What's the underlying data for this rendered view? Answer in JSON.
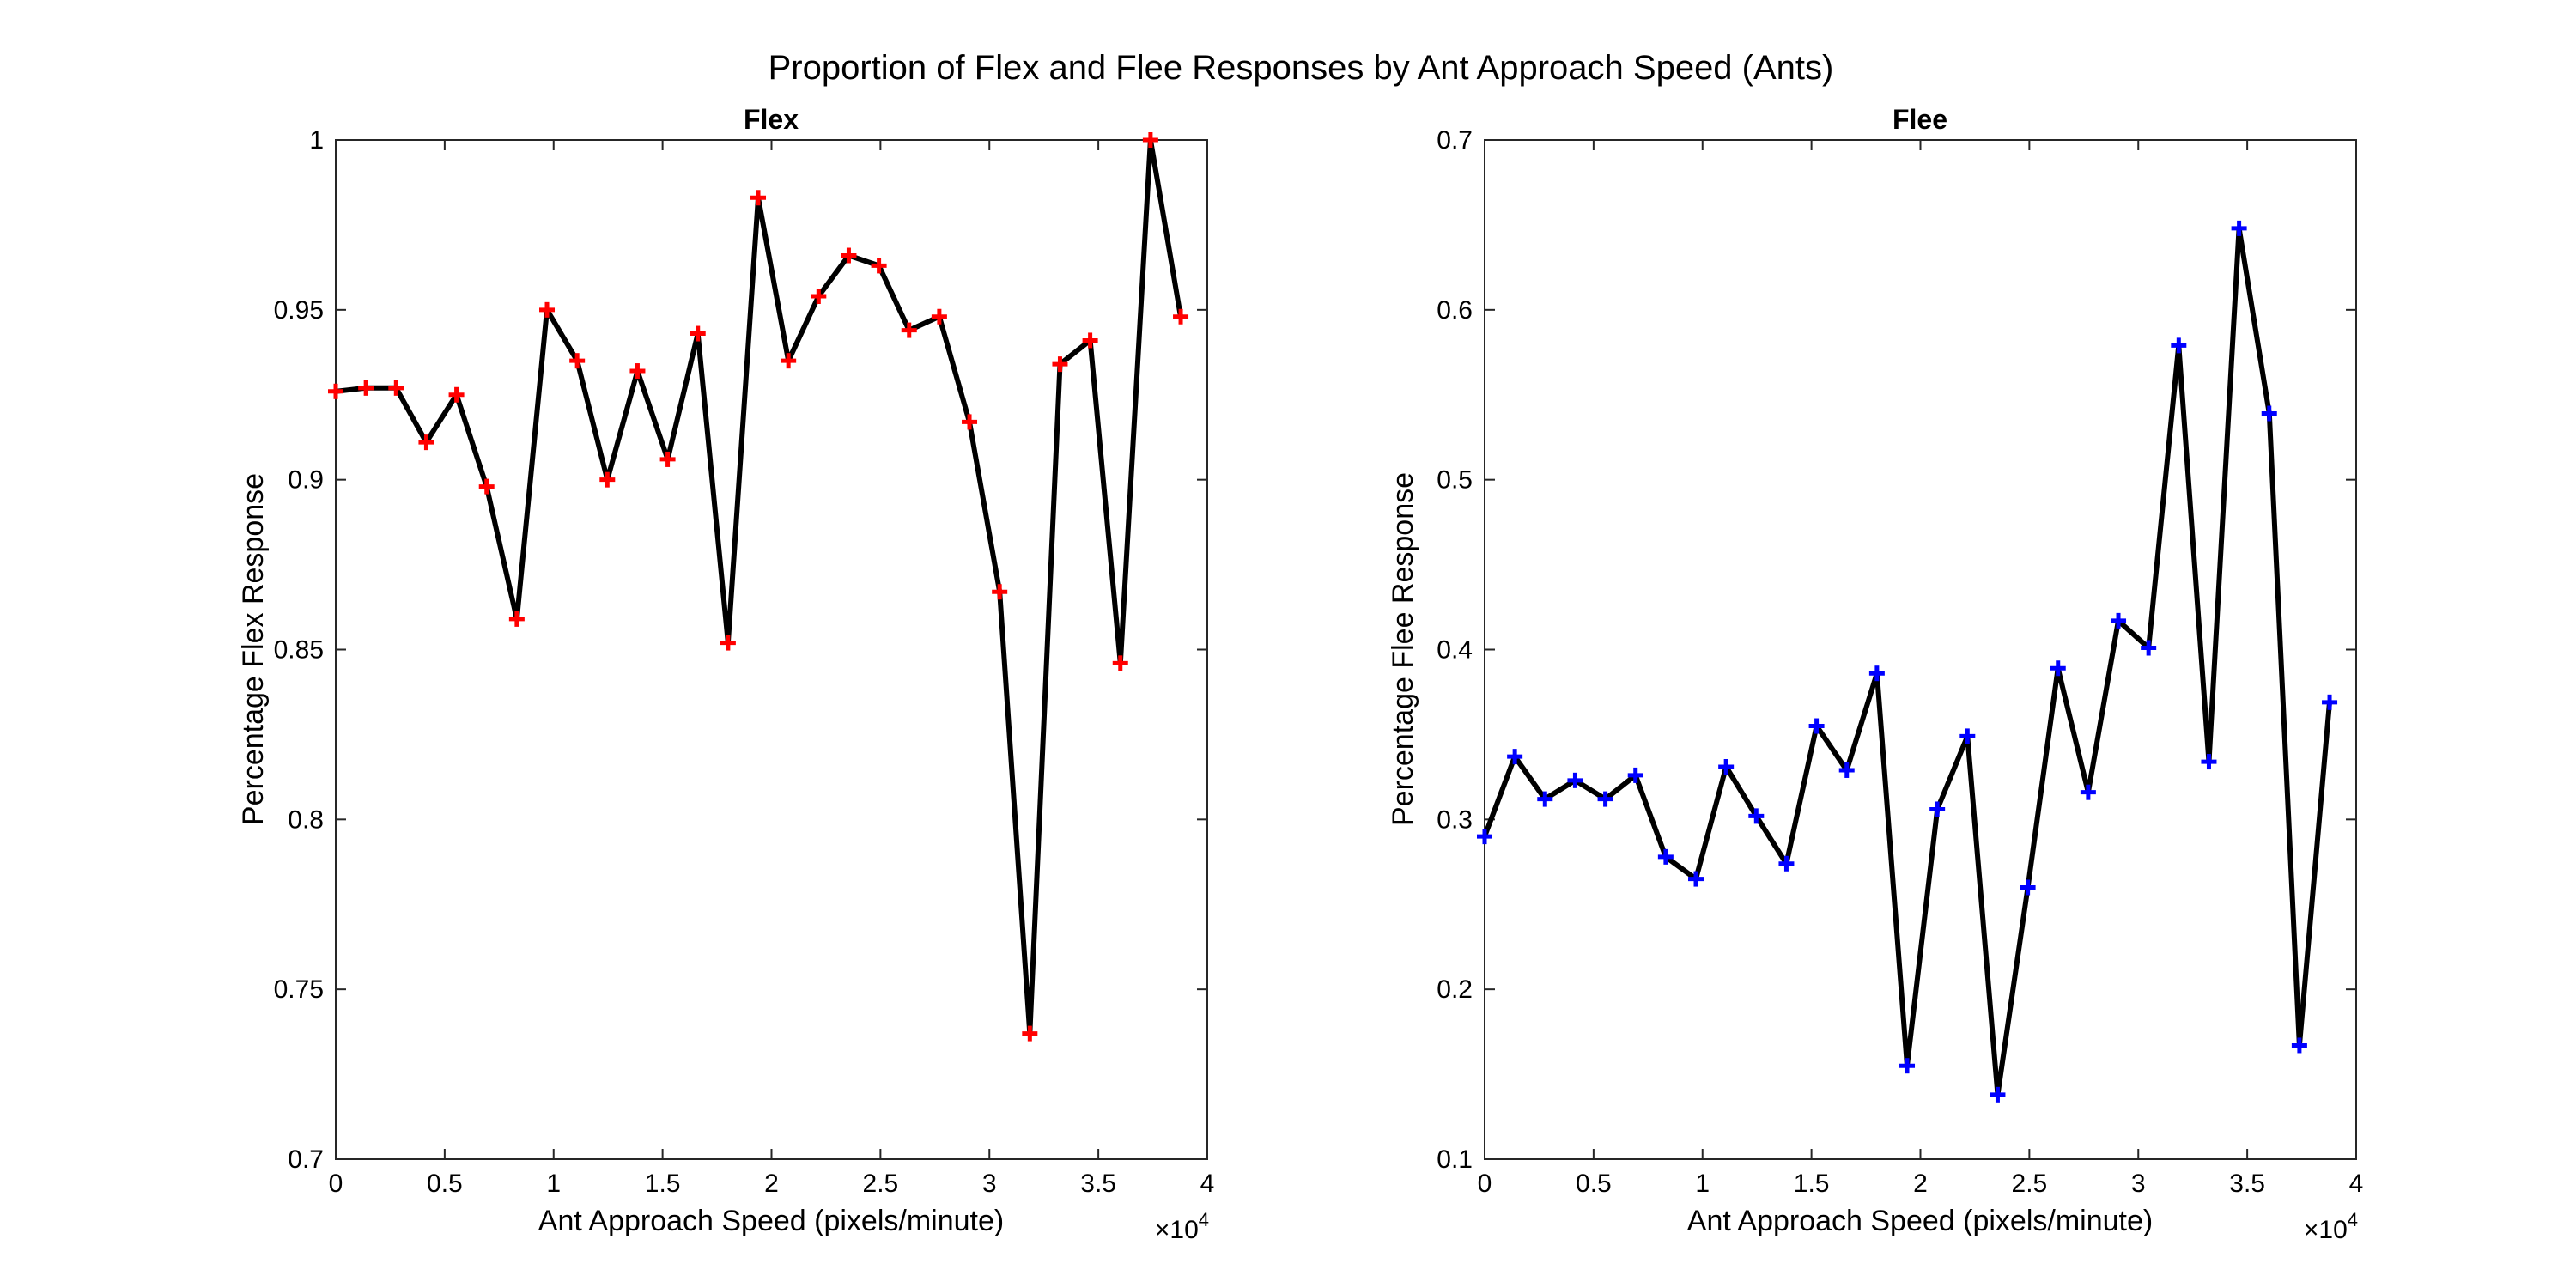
{
  "figure": {
    "title": "Proportion of Flex and Flee Responses by Ant Approach Speed (Ants)"
  },
  "chart_data": [
    {
      "type": "line",
      "title": "Flex",
      "xlabel": "Ant Approach Speed (pixels/minute)",
      "ylabel": "Percentage Flex Response",
      "x_exponent_label": "×10",
      "x_exponent": "4",
      "xlim": [
        0,
        40000
      ],
      "ylim": [
        0.7,
        1.0
      ],
      "xticks": [
        0,
        5000,
        10000,
        15000,
        20000,
        25000,
        30000,
        35000,
        40000
      ],
      "xtick_labels": [
        "0",
        "0.5",
        "1",
        "1.5",
        "2",
        "2.5",
        "3",
        "3.5",
        "4"
      ],
      "yticks": [
        0.7,
        0.75,
        0.8,
        0.85,
        0.9,
        0.95,
        1.0
      ],
      "ytick_labels": [
        "0.7",
        "0.75",
        "0.8",
        "0.85",
        "0.9",
        "0.95",
        "1"
      ],
      "grid": false,
      "line_color": "#000000",
      "marker": "plus",
      "marker_color": "#ff0000",
      "x": [
        0,
        1385,
        2770,
        4155,
        5540,
        6925,
        8310,
        9695,
        11080,
        12465,
        13850,
        15235,
        16620,
        18005,
        19390,
        20775,
        22160,
        23545,
        24930,
        26315,
        27700,
        29085,
        30470,
        31855,
        33240,
        34625,
        36010,
        37395,
        38780
      ],
      "y": [
        0.926,
        0.927,
        0.927,
        0.911,
        0.925,
        0.898,
        0.859,
        0.95,
        0.935,
        0.9,
        0.932,
        0.906,
        0.943,
        0.852,
        0.983,
        0.935,
        0.954,
        0.966,
        0.963,
        0.944,
        0.948,
        0.917,
        0.867,
        0.737,
        0.934,
        0.941,
        0.846,
        1.0,
        0.948
      ]
    },
    {
      "type": "line",
      "title": "Flee",
      "xlabel": "Ant Approach Speed (pixels/minute)",
      "ylabel": "Percentage Flee Response",
      "x_exponent_label": "×10",
      "x_exponent": "4",
      "xlim": [
        0,
        40000
      ],
      "ylim": [
        0.1,
        0.7
      ],
      "xticks": [
        0,
        5000,
        10000,
        15000,
        20000,
        25000,
        30000,
        35000,
        40000
      ],
      "xtick_labels": [
        "0",
        "0.5",
        "1",
        "1.5",
        "2",
        "2.5",
        "3",
        "3.5",
        "4"
      ],
      "yticks": [
        0.1,
        0.2,
        0.3,
        0.4,
        0.5,
        0.6,
        0.7
      ],
      "ytick_labels": [
        "0.1",
        "0.2",
        "0.3",
        "0.4",
        "0.5",
        "0.6",
        "0.7"
      ],
      "grid": false,
      "line_color": "#000000",
      "marker": "plus",
      "marker_color": "#0000ff",
      "x": [
        0,
        1385,
        2770,
        4155,
        5540,
        6925,
        8310,
        9695,
        11080,
        12465,
        13850,
        15235,
        16620,
        18005,
        19390,
        20775,
        22160,
        23545,
        24930,
        26315,
        27700,
        29085,
        30470,
        31855,
        33240,
        34625,
        36010,
        37395,
        38780
      ],
      "y": [
        0.29,
        0.337,
        0.312,
        0.323,
        0.312,
        0.326,
        0.278,
        0.265,
        0.331,
        0.302,
        0.274,
        0.355,
        0.329,
        0.386,
        0.155,
        0.306,
        0.349,
        0.138,
        0.26,
        0.389,
        0.316,
        0.417,
        0.401,
        0.579,
        0.334,
        0.648,
        0.539,
        0.167,
        0.369
      ]
    }
  ]
}
